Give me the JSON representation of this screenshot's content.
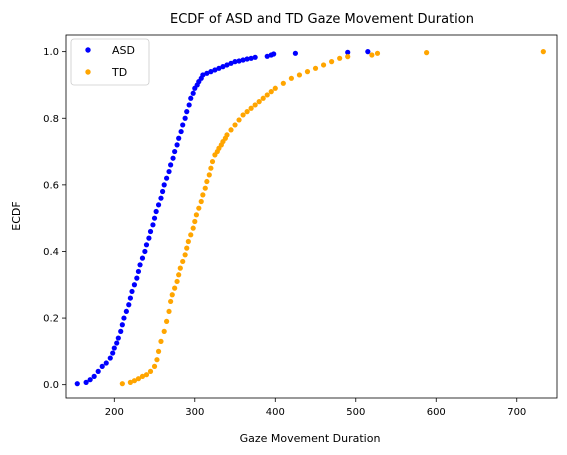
{
  "chart_data": {
    "type": "scatter",
    "title": "ECDF of ASD and TD Gaze Movement Duration",
    "xlabel": "Gaze Movement Duration",
    "ylabel": "ECDF",
    "xlim": [
      140,
      750
    ],
    "ylim": [
      -0.04,
      1.05
    ],
    "xticks": [
      200,
      300,
      400,
      500,
      600,
      700
    ],
    "yticks": [
      0.0,
      0.2,
      0.4,
      0.6,
      0.8,
      1.0
    ],
    "grid": false,
    "legend": "top-left",
    "series": [
      {
        "name": "ASD",
        "color": "#0000ff",
        "x": [
          154,
          165,
          170,
          175,
          180,
          185,
          190,
          195,
          198,
          200,
          203,
          205,
          208,
          210,
          212,
          215,
          218,
          220,
          222,
          225,
          228,
          230,
          232,
          235,
          238,
          240,
          243,
          245,
          248,
          250,
          252,
          255,
          258,
          260,
          262,
          265,
          268,
          270,
          273,
          275,
          278,
          280,
          283,
          285,
          288,
          290,
          293,
          295,
          298,
          300,
          303,
          305,
          308,
          310,
          315,
          320,
          325,
          330,
          335,
          340,
          345,
          350,
          355,
          360,
          365,
          370,
          375,
          390,
          395,
          398,
          425,
          490,
          515
        ],
        "y": [
          0.003,
          0.007,
          0.015,
          0.025,
          0.04,
          0.055,
          0.065,
          0.08,
          0.095,
          0.11,
          0.125,
          0.14,
          0.16,
          0.18,
          0.2,
          0.22,
          0.24,
          0.26,
          0.28,
          0.3,
          0.32,
          0.34,
          0.36,
          0.38,
          0.4,
          0.42,
          0.44,
          0.46,
          0.48,
          0.5,
          0.52,
          0.54,
          0.56,
          0.58,
          0.6,
          0.62,
          0.64,
          0.66,
          0.68,
          0.7,
          0.72,
          0.74,
          0.76,
          0.78,
          0.8,
          0.82,
          0.84,
          0.86,
          0.875,
          0.89,
          0.9,
          0.91,
          0.92,
          0.93,
          0.935,
          0.94,
          0.945,
          0.95,
          0.955,
          0.96,
          0.965,
          0.97,
          0.972,
          0.975,
          0.978,
          0.98,
          0.983,
          0.986,
          0.99,
          0.993,
          0.995,
          0.998,
          1.0
        ]
      },
      {
        "name": "TD",
        "color": "#ffa500",
        "x": [
          210,
          220,
          225,
          230,
          235,
          240,
          245,
          250,
          253,
          255,
          258,
          262,
          265,
          268,
          270,
          272,
          275,
          278,
          280,
          282,
          285,
          288,
          290,
          292,
          295,
          298,
          300,
          302,
          305,
          308,
          310,
          313,
          315,
          318,
          320,
          322,
          325,
          328,
          330,
          333,
          335,
          338,
          340,
          345,
          350,
          355,
          360,
          365,
          370,
          375,
          380,
          385,
          390,
          395,
          400,
          410,
          420,
          430,
          440,
          450,
          460,
          470,
          480,
          490,
          520,
          527,
          588,
          733
        ],
        "y": [
          0.003,
          0.007,
          0.012,
          0.018,
          0.025,
          0.03,
          0.04,
          0.055,
          0.075,
          0.1,
          0.13,
          0.16,
          0.19,
          0.22,
          0.25,
          0.27,
          0.29,
          0.31,
          0.33,
          0.35,
          0.37,
          0.39,
          0.41,
          0.43,
          0.45,
          0.47,
          0.49,
          0.51,
          0.53,
          0.55,
          0.57,
          0.59,
          0.61,
          0.63,
          0.65,
          0.67,
          0.69,
          0.7,
          0.71,
          0.72,
          0.73,
          0.74,
          0.75,
          0.765,
          0.78,
          0.795,
          0.81,
          0.82,
          0.83,
          0.84,
          0.85,
          0.86,
          0.87,
          0.88,
          0.89,
          0.905,
          0.92,
          0.93,
          0.94,
          0.95,
          0.96,
          0.97,
          0.98,
          0.985,
          0.99,
          0.995,
          0.997,
          1.0
        ]
      }
    ]
  }
}
